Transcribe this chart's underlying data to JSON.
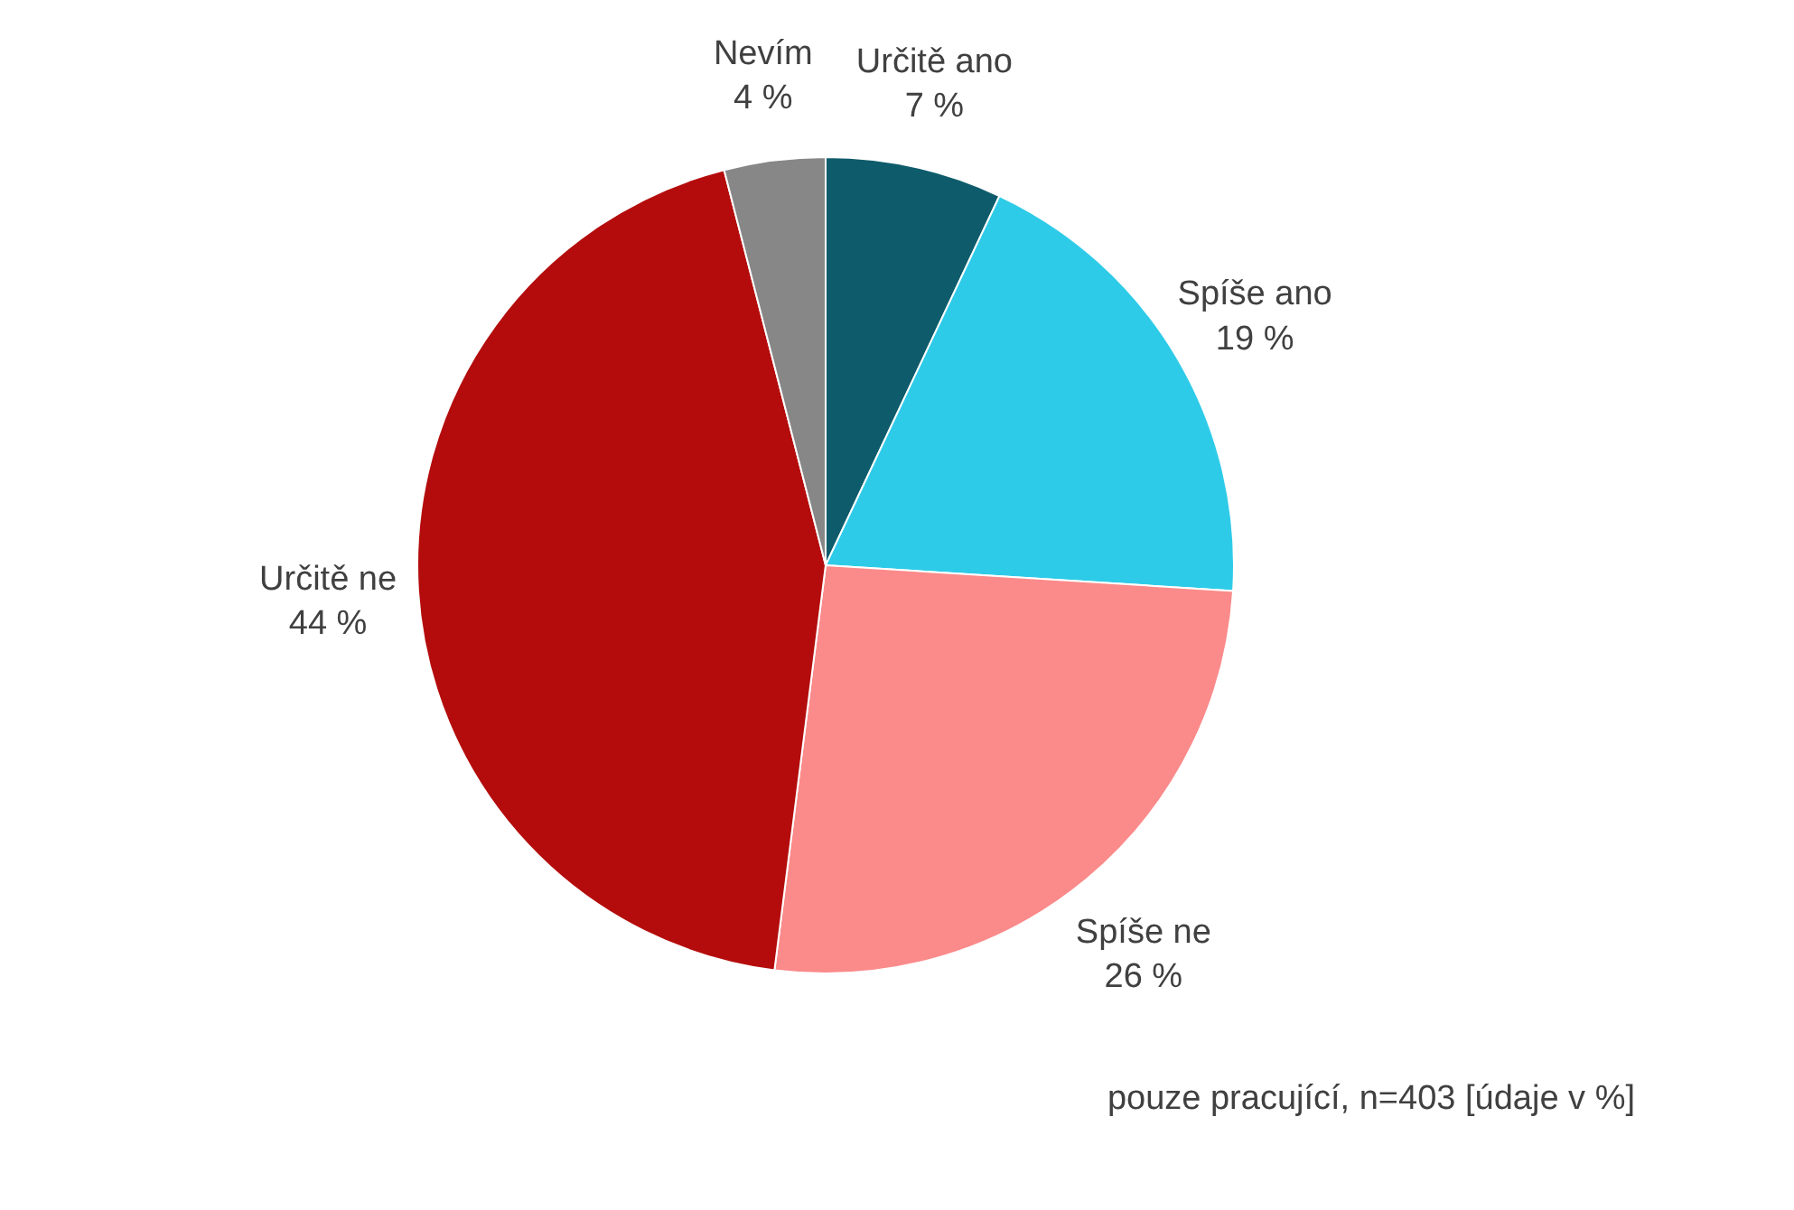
{
  "chart_data": {
    "type": "pie",
    "categories": [
      "Určitě ano",
      "Spíše ano",
      "Spíše ne",
      "Určitě ne",
      "Nevím"
    ],
    "values": [
      7,
      19,
      26,
      44,
      4
    ],
    "value_labels": [
      "7 %",
      "19 %",
      "26 %",
      "44 %",
      "4 %"
    ],
    "colors": [
      "#0e5c6b",
      "#2ecbe8",
      "#fb8a8a",
      "#b40c0c",
      "#878787"
    ],
    "annotations": [
      "pouze pracující, n=403 [údaje v %]"
    ]
  }
}
